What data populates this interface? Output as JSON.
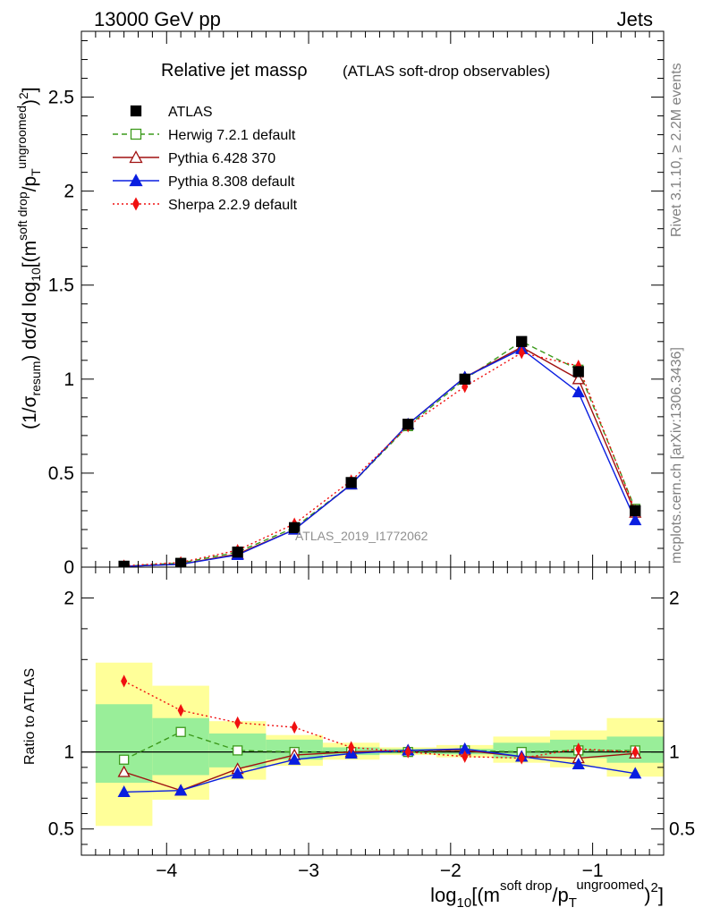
{
  "header": {
    "left": "13000 GeV pp",
    "right": "Jets",
    "side_top": "Rivet 3.1.10, ≥ 2.2M events",
    "side_bottom": "mcplots.cern.ch [arXiv:1306.3436]"
  },
  "plot": {
    "title_main": "Relative jet massρ",
    "title_sub": "(ATLAS soft-drop observables)",
    "watermark": "ATLAS_2019_I1772062"
  },
  "chart_data": [
    {
      "type": "scatter",
      "panel": "main",
      "xlim": [
        -4.6,
        -0.5
      ],
      "ylim": [
        0,
        2.85
      ],
      "yticks": [
        0,
        0.5,
        1,
        1.5,
        2,
        2.5
      ],
      "ytick_labels": [
        "0",
        "0.5",
        "1",
        "1.5",
        "2",
        "2.5"
      ],
      "ylabel": "(1/σresum) dσ/d log10[(m soft drop/pT ungroomed)2]",
      "xlabel": "log10[(m soft drop/pT ungroomed)2]",
      "legend": {
        "placement": "top-left",
        "entries": [
          "ATLAS",
          "Herwig 7.2.1 default",
          "Pythia 6.428 370",
          "Pythia 8.308 default",
          "Sherpa 2.2.9 default"
        ]
      },
      "x": [
        -4.3,
        -3.9,
        -3.5,
        -3.1,
        -2.7,
        -2.3,
        -1.9,
        -1.5,
        -1.1,
        -0.7
      ],
      "series": [
        {
          "name": "ATLAS",
          "color": "#000000",
          "marker": "filled-square",
          "line": "none",
          "values": [
            0.005,
            0.02,
            0.08,
            0.21,
            0.45,
            0.76,
            1.0,
            1.2,
            1.04,
            0.3
          ]
        },
        {
          "name": "Herwig 7.2.1 default",
          "color": "#3c9a1c",
          "marker": "open-square",
          "line": "dashed",
          "values": [
            0.005,
            0.022,
            0.08,
            0.21,
            0.44,
            0.75,
            1.0,
            1.2,
            1.05,
            0.31
          ]
        },
        {
          "name": "Pythia 6.428 370",
          "color": "#a01010",
          "marker": "open-triangle",
          "line": "solid",
          "values": [
            0.004,
            0.015,
            0.07,
            0.2,
            0.44,
            0.76,
            1.01,
            1.17,
            1.0,
            0.29
          ]
        },
        {
          "name": "Pythia 8.308 default",
          "color": "#0a1ee0",
          "marker": "filled-triangle",
          "line": "solid",
          "values": [
            0.004,
            0.015,
            0.065,
            0.2,
            0.44,
            0.76,
            1.01,
            1.16,
            0.93,
            0.25
          ]
        },
        {
          "name": "Sherpa 2.2.9 default",
          "color": "#f01010",
          "marker": "filled-diamond",
          "line": "dotted",
          "values": [
            0.007,
            0.025,
            0.09,
            0.23,
            0.46,
            0.75,
            0.96,
            1.14,
            1.07,
            0.3
          ]
        }
      ]
    },
    {
      "type": "scatter",
      "panel": "ratio",
      "xlim": [
        -4.6,
        -0.5
      ],
      "ylim": [
        0.33,
        2.2
      ],
      "yticks": [
        0.5,
        1,
        2
      ],
      "ytick_labels": [
        "0.5",
        "1",
        "2"
      ],
      "xticks": [
        -4,
        -3,
        -2,
        -1
      ],
      "xtick_labels": [
        "−4",
        "−3",
        "−2",
        "−1"
      ],
      "ylabel": "Ratio to ATLAS",
      "bin_edges": [
        -4.5,
        -4.1,
        -3.7,
        -3.3,
        -2.9,
        -2.5,
        -2.1,
        -1.7,
        -1.3,
        -0.9,
        -0.5
      ],
      "band_inner": [
        [
          0.8,
          1.31
        ],
        [
          0.85,
          1.22
        ],
        [
          0.9,
          1.12
        ],
        [
          0.95,
          1.08
        ],
        [
          0.98,
          1.03
        ],
        [
          0.99,
          1.02
        ],
        [
          0.985,
          1.02
        ],
        [
          0.96,
          1.06
        ],
        [
          0.96,
          1.08
        ],
        [
          0.93,
          1.1
        ]
      ],
      "band_outer": [
        [
          0.52,
          1.58
        ],
        [
          0.69,
          1.43
        ],
        [
          0.82,
          1.2
        ],
        [
          0.91,
          1.11
        ],
        [
          0.95,
          1.06
        ],
        [
          0.98,
          1.03
        ],
        [
          0.965,
          1.045
        ],
        [
          0.93,
          1.1
        ],
        [
          0.9,
          1.14
        ],
        [
          0.84,
          1.22
        ]
      ],
      "x": [
        -4.3,
        -3.9,
        -3.5,
        -3.1,
        -2.7,
        -2.3,
        -1.9,
        -1.5,
        -1.1,
        -0.7
      ],
      "series": [
        {
          "name": "Herwig 7.2.1 default",
          "color": "#3c9a1c",
          "marker": "open-square",
          "line": "dashed",
          "values": [
            0.95,
            1.13,
            1.01,
            1.0,
            1.0,
            1.0,
            1.01,
            1.0,
            1.01,
            1.01
          ]
        },
        {
          "name": "Pythia 6.428 370",
          "color": "#a01010",
          "marker": "open-triangle",
          "line": "solid",
          "values": [
            0.87,
            0.75,
            0.89,
            0.98,
            1.0,
            1.01,
            1.01,
            0.97,
            0.96,
            0.99
          ]
        },
        {
          "name": "Pythia 8.308 default",
          "color": "#0a1ee0",
          "marker": "filled-triangle",
          "line": "solid",
          "values": [
            0.74,
            0.75,
            0.86,
            0.95,
            0.99,
            1.01,
            1.02,
            0.97,
            0.92,
            0.86
          ]
        },
        {
          "name": "Sherpa 2.2.9 default",
          "color": "#f01010",
          "marker": "filled-diamond",
          "line": "dotted",
          "values": [
            1.46,
            1.27,
            1.19,
            1.16,
            1.03,
            1.0,
            0.97,
            0.96,
            1.02,
            1.0
          ]
        }
      ]
    }
  ]
}
